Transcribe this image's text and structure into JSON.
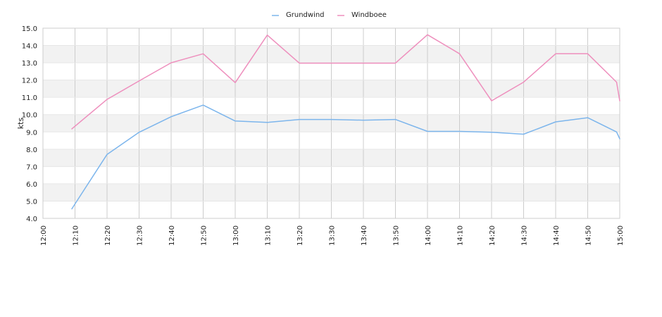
{
  "chart_data": {
    "type": "line",
    "title": "",
    "xlabel": "",
    "ylabel": "kts",
    "ylim": [
      4.0,
      15.0
    ],
    "y_ticks": [
      "4.0",
      "5.0",
      "6.0",
      "7.0",
      "8.0",
      "9.0",
      "10.0",
      "11.0",
      "12.0",
      "13.0",
      "14.0",
      "15.0"
    ],
    "x_ticks": [
      "12:00",
      "12:10",
      "12:20",
      "12:30",
      "12:40",
      "12:50",
      "13:00",
      "13:10",
      "13:20",
      "13:30",
      "13:40",
      "13:50",
      "14:00",
      "14:10",
      "14:20",
      "14:30",
      "14:40",
      "14:50",
      "15:00"
    ],
    "x_range": [
      "12:00",
      "15:00"
    ],
    "grid": "horizontal alternating bands, vertical gridlines",
    "legend_position": "top-center",
    "series": [
      {
        "name": "Grundwind",
        "color": "#7cb5ec",
        "points": [
          [
            "12:09",
            4.55
          ],
          [
            "12:20",
            7.7
          ],
          [
            "12:30",
            8.98
          ],
          [
            "12:40",
            9.88
          ],
          [
            "12:50",
            10.55
          ],
          [
            "13:00",
            9.63
          ],
          [
            "13:10",
            9.55
          ],
          [
            "13:20",
            9.72
          ],
          [
            "13:30",
            9.72
          ],
          [
            "13:40",
            9.68
          ],
          [
            "13:50",
            9.72
          ],
          [
            "14:00",
            9.03
          ],
          [
            "14:10",
            9.03
          ],
          [
            "14:20",
            8.98
          ],
          [
            "14:30",
            8.87
          ],
          [
            "14:40",
            9.58
          ],
          [
            "14:50",
            9.82
          ],
          [
            "14:59",
            9.0
          ],
          [
            "15:00",
            8.6
          ]
        ]
      },
      {
        "name": "Windboee",
        "color": "#ee8fbd",
        "points": [
          [
            "12:09",
            9.18
          ],
          [
            "12:20",
            10.88
          ],
          [
            "12:30",
            11.95
          ],
          [
            "12:40",
            13.0
          ],
          [
            "12:50",
            13.52
          ],
          [
            "13:00",
            11.85
          ],
          [
            "13:10",
            14.6
          ],
          [
            "13:20",
            12.98
          ],
          [
            "13:30",
            12.98
          ],
          [
            "13:40",
            12.98
          ],
          [
            "13:50",
            12.98
          ],
          [
            "14:00",
            14.62
          ],
          [
            "14:10",
            13.52
          ],
          [
            "14:20",
            10.8
          ],
          [
            "14:30",
            11.88
          ],
          [
            "14:40",
            13.52
          ],
          [
            "14:50",
            13.52
          ],
          [
            "14:59",
            11.88
          ],
          [
            "15:00",
            10.8
          ]
        ]
      }
    ]
  }
}
